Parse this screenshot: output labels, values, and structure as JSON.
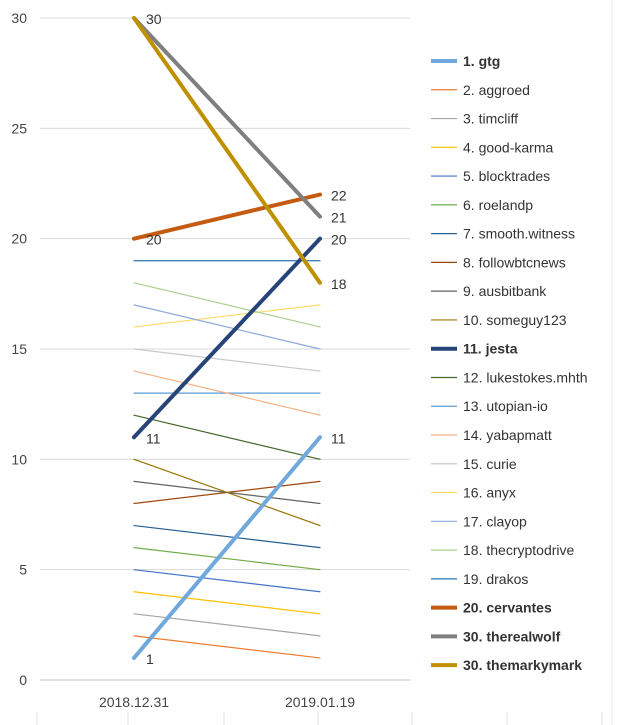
{
  "chart_data": {
    "type": "line",
    "categories": [
      "2018.12.31",
      "2019.01.19"
    ],
    "ylim": [
      0,
      30
    ],
    "yticks": [
      "0",
      "5",
      "10",
      "15",
      "20",
      "25",
      "30"
    ],
    "grid": true,
    "legend_position": "right",
    "series": [
      {
        "name": "1. gtg",
        "values": [
          1,
          11
        ],
        "color": "#6fa8dc",
        "bold": true,
        "labels": [
          "1",
          "11"
        ]
      },
      {
        "name": "2. aggroed",
        "values": [
          2,
          1
        ],
        "color": "#ed7d31",
        "bold": false
      },
      {
        "name": "3. timcliff",
        "values": [
          3,
          2
        ],
        "color": "#a5a5a5",
        "bold": false
      },
      {
        "name": "4. good-karma",
        "values": [
          4,
          3
        ],
        "color": "#ffc000",
        "bold": false
      },
      {
        "name": "5. blocktrades",
        "values": [
          5,
          4
        ],
        "color": "#4472c4",
        "bold": false
      },
      {
        "name": "6. roelandp",
        "values": [
          6,
          5
        ],
        "color": "#70ad47",
        "bold": false
      },
      {
        "name": "7. smooth.witness",
        "values": [
          7,
          6
        ],
        "color": "#255e91",
        "bold": false
      },
      {
        "name": "8. followbtcnews",
        "values": [
          8,
          9
        ],
        "color": "#9e480e",
        "bold": false
      },
      {
        "name": "9. ausbitbank",
        "values": [
          9,
          8
        ],
        "color": "#636363",
        "bold": false
      },
      {
        "name": "10. someguy123",
        "values": [
          10,
          7
        ],
        "color": "#997300",
        "bold": false
      },
      {
        "name": "11. jesta",
        "values": [
          11,
          20
        ],
        "color": "#264478",
        "bold": true,
        "labels": [
          "11",
          "20"
        ]
      },
      {
        "name": "12. lukestokes.mhth",
        "values": [
          12,
          10
        ],
        "color": "#43682b",
        "bold": false
      },
      {
        "name": "13. utopian-io",
        "values": [
          13,
          13
        ],
        "color": "#5b9bd5",
        "bold": false
      },
      {
        "name": "14. yabapmatt",
        "values": [
          14,
          12
        ],
        "color": "#f4b183",
        "bold": false
      },
      {
        "name": "15. curie",
        "values": [
          15,
          14
        ],
        "color": "#c9c9c9",
        "bold": false
      },
      {
        "name": "16. anyx",
        "values": [
          16,
          17
        ],
        "color": "#ffd966",
        "bold": false
      },
      {
        "name": "17. clayop",
        "values": [
          17,
          15
        ],
        "color": "#8eaadb",
        "bold": false
      },
      {
        "name": "18. thecryptodrive",
        "values": [
          18,
          16
        ],
        "color": "#a9d18e",
        "bold": false
      },
      {
        "name": "19. drakos",
        "values": [
          19,
          19
        ],
        "color": "#2e75b6",
        "bold": false
      },
      {
        "name": "20. cervantes",
        "values": [
          20,
          22
        ],
        "color": "#c55a11",
        "bold": true,
        "labels": [
          "20",
          "22"
        ]
      },
      {
        "name": "30. therealwolf",
        "values": [
          30,
          21
        ],
        "color": "#7f7f7f",
        "bold": true,
        "labels": [
          "",
          "21"
        ]
      },
      {
        "name": "30. themarkymark",
        "values": [
          30,
          18
        ],
        "color": "#bf9000",
        "bold": true,
        "labels": [
          "30",
          "18"
        ]
      }
    ]
  }
}
